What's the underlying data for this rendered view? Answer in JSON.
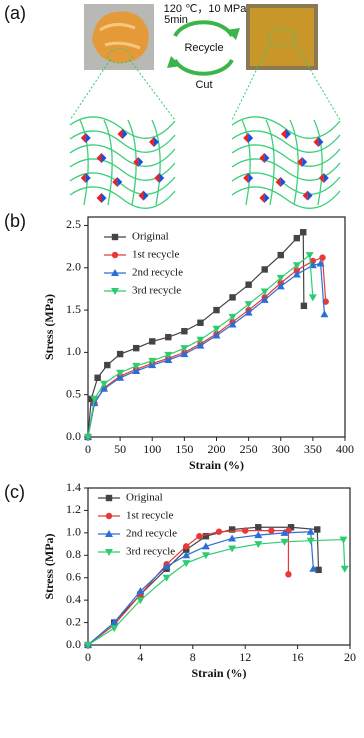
{
  "diagram": {
    "label": "(a)",
    "conditions": "120 ℃，10 MPa",
    "time": "5min",
    "forward": "Recycle",
    "backward": "Cut"
  },
  "chart_data": [
    {
      "type": "line",
      "panel_label": "(b)",
      "x_label": "Strain (%)",
      "y_label": "Stress (MPa)",
      "xlim": [
        0,
        400
      ],
      "xticks": [
        0,
        50,
        100,
        150,
        200,
        250,
        300,
        350,
        400
      ],
      "ylim": [
        0,
        2.6
      ],
      "yticks": [
        {
          "value": 0,
          "label": "0.0"
        },
        0.5,
        {
          "value": 1,
          "label": "1.0"
        },
        1.5,
        {
          "value": 2,
          "label": "2.0"
        },
        2.5
      ],
      "legend": "upper left",
      "series": [
        {
          "name": "Original",
          "color": "#444444",
          "marker": "square",
          "x": [
            0,
            5,
            15,
            30,
            50,
            75,
            100,
            125,
            150,
            175,
            200,
            225,
            250,
            275,
            300,
            325,
            335,
            336
          ],
          "values": [
            0,
            0.45,
            0.7,
            0.85,
            0.98,
            1.05,
            1.13,
            1.18,
            1.25,
            1.35,
            1.5,
            1.65,
            1.8,
            1.98,
            2.15,
            2.35,
            2.42,
            1.55
          ]
        },
        {
          "name": "1st recycle",
          "color": "#e8393a",
          "marker": "circle",
          "x": [
            0,
            10,
            25,
            50,
            75,
            100,
            125,
            150,
            175,
            200,
            225,
            250,
            275,
            300,
            325,
            350,
            365,
            370
          ],
          "values": [
            0,
            0.4,
            0.58,
            0.72,
            0.8,
            0.87,
            0.93,
            1.0,
            1.1,
            1.22,
            1.36,
            1.5,
            1.65,
            1.82,
            1.97,
            2.08,
            2.12,
            1.6
          ]
        },
        {
          "name": "2nd recycle",
          "color": "#2a6fd6",
          "marker": "triangle-up",
          "x": [
            0,
            10,
            25,
            50,
            75,
            100,
            125,
            150,
            175,
            200,
            225,
            250,
            275,
            300,
            325,
            350,
            362,
            368
          ],
          "values": [
            0,
            0.4,
            0.57,
            0.7,
            0.78,
            0.85,
            0.91,
            0.98,
            1.08,
            1.2,
            1.33,
            1.47,
            1.62,
            1.78,
            1.92,
            2.03,
            2.05,
            1.45
          ]
        },
        {
          "name": "3rd recycle",
          "color": "#2ecc71",
          "marker": "triangle-down",
          "x": [
            0,
            10,
            25,
            50,
            75,
            100,
            125,
            150,
            175,
            200,
            225,
            250,
            275,
            300,
            325,
            345,
            350
          ],
          "values": [
            0,
            0.45,
            0.63,
            0.76,
            0.84,
            0.9,
            0.97,
            1.05,
            1.15,
            1.28,
            1.42,
            1.57,
            1.72,
            1.88,
            2.03,
            2.15,
            1.65
          ]
        }
      ]
    },
    {
      "type": "line",
      "panel_label": "(c)",
      "x_label": "Strain (%)",
      "y_label": "Stress (MPa)",
      "xlim": [
        0,
        20
      ],
      "xticks": [
        0,
        4,
        8,
        12,
        16,
        20
      ],
      "ylim": [
        0,
        1.4
      ],
      "yticks": [
        {
          "value": 0,
          "label": "0.0"
        },
        0.2,
        0.4,
        0.6,
        0.8,
        {
          "value": 1,
          "label": "1.0"
        },
        1.2,
        1.4
      ],
      "legend": "upper left",
      "series": [
        {
          "name": "Original",
          "color": "#444444",
          "marker": "square",
          "x": [
            0,
            2,
            4,
            6,
            7.5,
            9,
            11,
            13,
            15.5,
            17.5,
            17.6
          ],
          "values": [
            0,
            0.2,
            0.45,
            0.68,
            0.85,
            0.97,
            1.03,
            1.05,
            1.05,
            1.03,
            0.67
          ]
        },
        {
          "name": "1st recycle",
          "color": "#e8393a",
          "marker": "circle",
          "x": [
            0,
            2,
            4,
            6,
            7.5,
            8.5,
            10,
            12,
            14,
            15.3,
            15.3
          ],
          "values": [
            0,
            0.18,
            0.45,
            0.72,
            0.88,
            0.97,
            1.01,
            1.02,
            1.02,
            1.02,
            0.63
          ]
        },
        {
          "name": "2nd recycle",
          "color": "#2a6fd6",
          "marker": "triangle-up",
          "x": [
            0,
            2,
            4,
            6,
            7.5,
            9,
            11,
            13,
            15,
            17,
            17.2
          ],
          "values": [
            0,
            0.2,
            0.48,
            0.7,
            0.8,
            0.88,
            0.95,
            0.98,
            1.0,
            1.01,
            0.68
          ]
        },
        {
          "name": "3rd recycle",
          "color": "#2ecc71",
          "marker": "triangle-down",
          "x": [
            0,
            2,
            4,
            6,
            7.5,
            9,
            11,
            13,
            15,
            17,
            19.5,
            19.6
          ],
          "values": [
            0,
            0.15,
            0.4,
            0.6,
            0.73,
            0.8,
            0.86,
            0.9,
            0.92,
            0.93,
            0.94,
            0.68
          ]
        }
      ]
    }
  ]
}
